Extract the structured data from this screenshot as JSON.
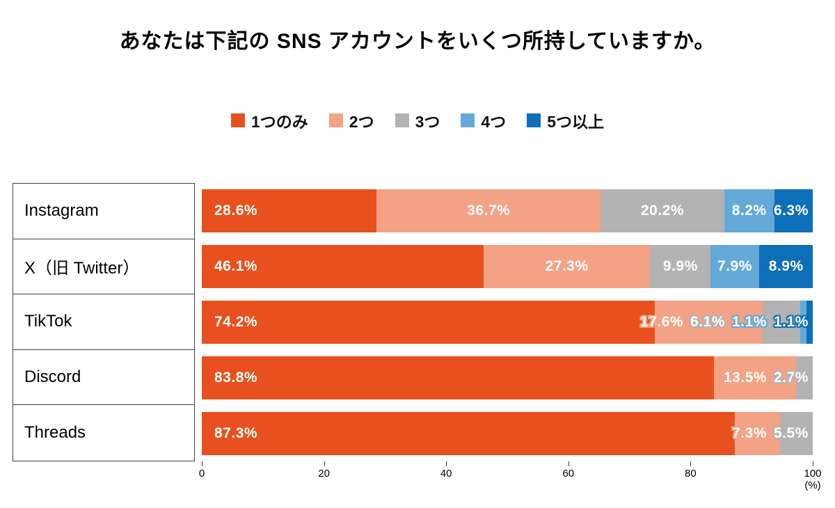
{
  "chart_data": {
    "type": "bar",
    "orientation": "horizontal",
    "stacked": true,
    "title": "あなたは下記の SNS アカウントをいくつ所持していますか。",
    "categories": [
      "Instagram",
      "X（旧 Twitter）",
      "TikTok",
      "Discord",
      "Threads"
    ],
    "series": [
      {
        "name": "1つのみ",
        "color": "#e8511f",
        "values": [
          28.6,
          46.1,
          74.2,
          83.8,
          87.3
        ]
      },
      {
        "name": "2つ",
        "color": "#f4a285",
        "values": [
          36.7,
          27.3,
          17.6,
          13.5,
          7.3
        ]
      },
      {
        "name": "3つ",
        "color": "#b3b3b3",
        "values": [
          20.2,
          9.9,
          6.1,
          2.7,
          5.5
        ]
      },
      {
        "name": "4つ",
        "color": "#64a9d8",
        "values": [
          8.2,
          7.9,
          1.1,
          0,
          0
        ]
      },
      {
        "name": "5つ以上",
        "color": "#0d6fb8",
        "values": [
          6.3,
          8.9,
          1.1,
          0,
          0
        ]
      }
    ],
    "xlim": [
      0,
      100
    ],
    "x_ticks": [
      0,
      20,
      40,
      60,
      80,
      100
    ],
    "x_unit": "(%)",
    "legend_position": "top",
    "value_label_format": "0.0%",
    "grid": false
  }
}
